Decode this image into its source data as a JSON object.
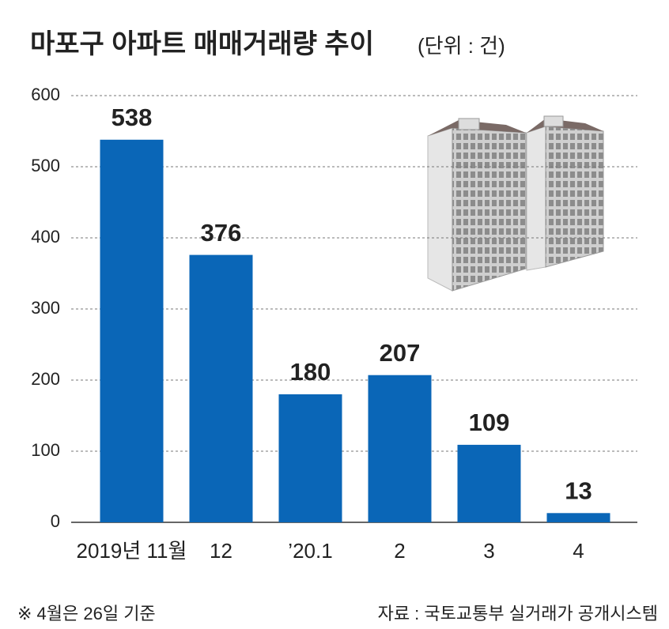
{
  "chart_data": {
    "type": "bar",
    "title": "마포구 아파트 매매거래량 추이",
    "subtitle": "(단위 : 건)",
    "categories": [
      "2019년 11월",
      "12",
      "’20.1",
      "2",
      "3",
      "4"
    ],
    "values": [
      538,
      376,
      180,
      207,
      109,
      13
    ],
    "color": "#0a66b7",
    "ylim": [
      0,
      600
    ],
    "yticks": [
      0,
      100,
      200,
      300,
      400,
      500,
      600
    ],
    "grid": true,
    "note": "※ 4월은 26일 기준",
    "source": "자료 : 국토교통부 실거래가 공개시스템"
  }
}
